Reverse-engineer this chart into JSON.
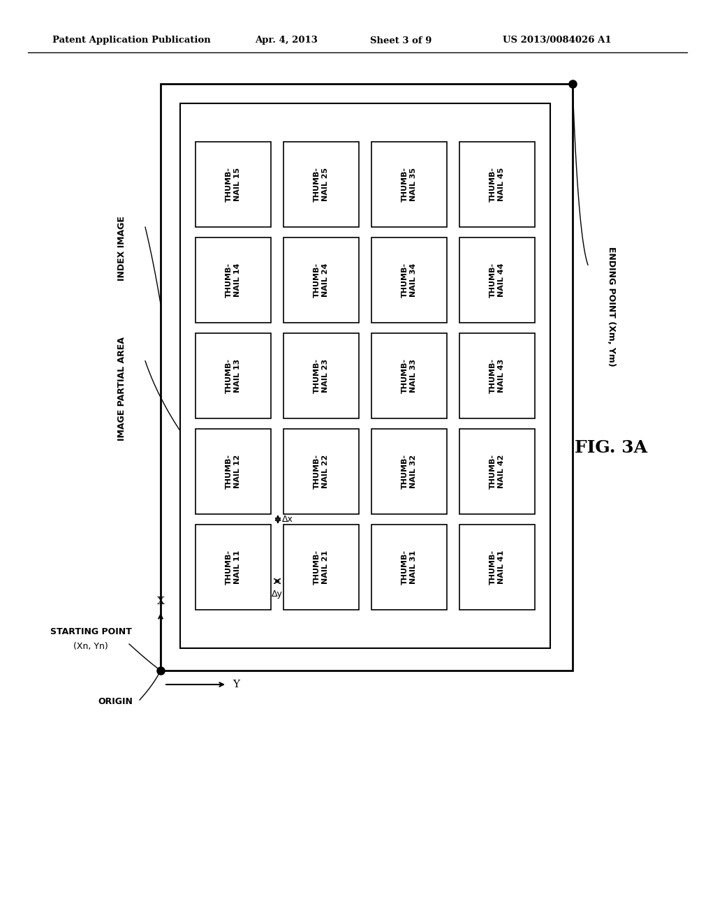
{
  "title_header": "Patent Application Publication",
  "title_date": "Apr. 4, 2013",
  "title_sheet": "Sheet 3 of 9",
  "title_patent": "US 2013/0084026 A1",
  "fig_label": "FIG. 3A",
  "thumbnails": [
    {
      "label": "THUMB-\nNAIL 11",
      "col": 0,
      "row": 0
    },
    {
      "label": "THUMB-\nNAIL 12",
      "col": 0,
      "row": 1
    },
    {
      "label": "THUMB-\nNAIL 13",
      "col": 0,
      "row": 2
    },
    {
      "label": "THUMB-\nNAIL 14",
      "col": 0,
      "row": 3
    },
    {
      "label": "THUMB-\nNAIL 15",
      "col": 0,
      "row": 4
    },
    {
      "label": "THUMB-\nNAIL 21",
      "col": 1,
      "row": 0
    },
    {
      "label": "THUMB-\nNAIL 22",
      "col": 1,
      "row": 1
    },
    {
      "label": "THUMB-\nNAIL 23",
      "col": 1,
      "row": 2
    },
    {
      "label": "THUMB-\nNAIL 24",
      "col": 1,
      "row": 3
    },
    {
      "label": "THUMB-\nNAIL 25",
      "col": 1,
      "row": 4
    },
    {
      "label": "THUMB-\nNAIL 31",
      "col": 2,
      "row": 0
    },
    {
      "label": "THUMB-\nNAIL 32",
      "col": 2,
      "row": 1
    },
    {
      "label": "THUMB-\nNAIL 33",
      "col": 2,
      "row": 2
    },
    {
      "label": "THUMB-\nNAIL 34",
      "col": 2,
      "row": 3
    },
    {
      "label": "THUMB-\nNAIL 35",
      "col": 2,
      "row": 4
    },
    {
      "label": "THUMB-\nNAIL 41",
      "col": 3,
      "row": 0
    },
    {
      "label": "THUMB-\nNAIL 42",
      "col": 3,
      "row": 1
    },
    {
      "label": "THUMB-\nNAIL 43",
      "col": 3,
      "row": 2
    },
    {
      "label": "THUMB-\nNAIL 44",
      "col": 3,
      "row": 3
    },
    {
      "label": "THUMB-\nNAIL 45",
      "col": 3,
      "row": 4
    }
  ],
  "bg_color": "#ffffff"
}
